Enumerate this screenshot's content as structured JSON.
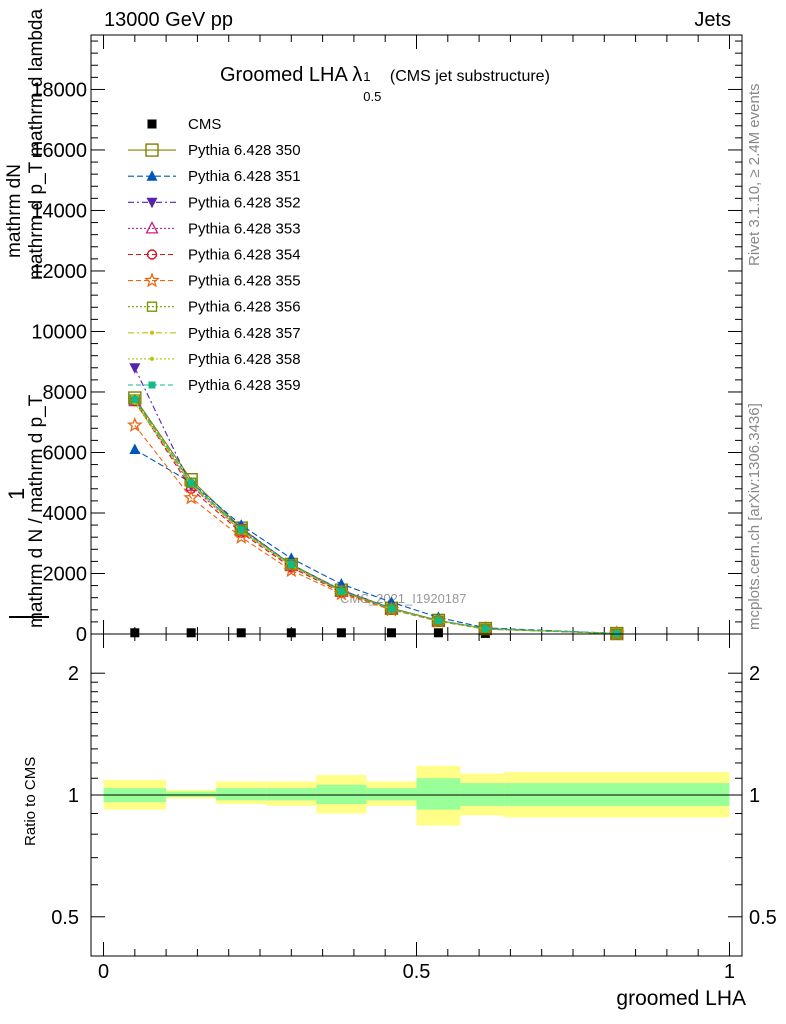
{
  "header": {
    "left": "13000 GeV pp",
    "right": "Jets"
  },
  "side_labels": {
    "rivet": "Rivet 3.1.10, ≥ 2.4M events",
    "mcplots": "mcplots.cern.ch [arXiv:1306.3436]"
  },
  "watermark": "CMS_2021_I1920187",
  "main_title": {
    "text": "Groomed LHA",
    "lambda": "λ",
    "sup": "1",
    "sub": "0.5",
    "note": "(CMS jet substructure)"
  },
  "y_axis_main": {
    "numerator": "mathrm dN",
    "denominator_top": "mathrm d p_T mathrm d lambda",
    "prefix": "1",
    "denominator_bottom": "mathrm d N / mathrm d p_T"
  },
  "y_axis_ratio_label": "Ratio to CMS",
  "x_axis_label": "groomed LHA",
  "colors": {
    "band_outer": "#ffff88",
    "band_inner": "#99ff99",
    "axis": "#000000"
  },
  "chart_data": [
    {
      "type": "line",
      "panel": "main",
      "xlim": [
        -0.02,
        1.02
      ],
      "ylim": [
        0,
        19800
      ],
      "y_ticks": [
        0,
        2000,
        4000,
        6000,
        8000,
        10000,
        12000,
        14000,
        16000,
        18000
      ],
      "y_tick_labels": [
        "0",
        "2000",
        "4000",
        "6000",
        "8000",
        "10000",
        "12000",
        "14000",
        "16000",
        "18000"
      ],
      "x": [
        0.05,
        0.14,
        0.22,
        0.3,
        0.38,
        0.46,
        0.535,
        0.61,
        0.82
      ],
      "series": [
        {
          "name": "CMS",
          "color": "#000000",
          "marker": "filled-square",
          "dash": "none",
          "values": [
            40,
            40,
            40,
            40,
            40,
            40,
            40,
            20,
            5
          ]
        },
        {
          "name": "Pythia 6.428 350",
          "color": "#808000",
          "marker": "open-square",
          "dash": "solid",
          "values": [
            7800,
            5100,
            3500,
            2300,
            1450,
            850,
            450,
            180,
            15
          ]
        },
        {
          "name": "Pythia 6.428 351",
          "color": "#0055bb",
          "marker": "filled-triangle-up",
          "dash": "6,3",
          "values": [
            6100,
            5000,
            3600,
            2500,
            1650,
            1050,
            550,
            200,
            20
          ]
        },
        {
          "name": "Pythia 6.428 352",
          "color": "#5522aa",
          "marker": "filled-triangle-down",
          "dash": "6,3,2,3",
          "values": [
            8800,
            4900,
            3500,
            2300,
            1450,
            850,
            450,
            170,
            15
          ]
        },
        {
          "name": "Pythia 6.428 353",
          "color": "#cc2288",
          "marker": "open-triangle-up",
          "dash": "2,2",
          "values": [
            7700,
            4900,
            3400,
            2250,
            1400,
            830,
            440,
            170,
            15
          ]
        },
        {
          "name": "Pythia 6.428 354",
          "color": "#dd1122",
          "marker": "open-circle",
          "dash": "5,3",
          "values": [
            7700,
            4800,
            3350,
            2200,
            1380,
            820,
            440,
            170,
            15
          ]
        },
        {
          "name": "Pythia 6.428 355",
          "color": "#ee6611",
          "marker": "open-star",
          "dash": "5,3",
          "values": [
            6900,
            4500,
            3200,
            2100,
            1330,
            800,
            420,
            160,
            15
          ]
        },
        {
          "name": "Pythia 6.428 356",
          "color": "#779900",
          "marker": "open-square-small",
          "dash": "2,2",
          "values": [
            7750,
            5000,
            3450,
            2300,
            1430,
            840,
            445,
            175,
            15
          ]
        },
        {
          "name": "Pythia 6.428 357",
          "color": "#ccbb00",
          "marker": "small-dot",
          "dash": "6,3,2,3",
          "values": [
            7700,
            4950,
            3400,
            2250,
            1410,
            830,
            440,
            172,
            15
          ]
        },
        {
          "name": "Pythia 6.428 358",
          "color": "#aacc00",
          "marker": "small-dot",
          "dash": "2,2",
          "values": [
            7650,
            4950,
            3400,
            2250,
            1400,
            830,
            440,
            170,
            15
          ]
        },
        {
          "name": "Pythia 6.428 359",
          "color": "#11bb88",
          "marker": "filled-square-small",
          "dash": "5,3",
          "values": [
            7750,
            5000,
            3450,
            2300,
            1420,
            840,
            445,
            175,
            15
          ]
        }
      ]
    },
    {
      "type": "area",
      "panel": "ratio",
      "xlim": [
        -0.02,
        1.02
      ],
      "y_scale": "log",
      "ylim": [
        0.4,
        2.5
      ],
      "y_ticks": [
        0.5,
        1,
        2
      ],
      "y_tick_labels": [
        "0.5",
        "1",
        "2"
      ],
      "x_ticks": [
        0,
        0.5,
        1
      ],
      "x_tick_labels": [
        "0",
        "0.5",
        "1"
      ],
      "reference": 1,
      "bins": [
        {
          "x0": 0.0,
          "x1": 0.1,
          "outer": [
            0.92,
            1.09
          ],
          "inner": [
            0.96,
            1.04
          ]
        },
        {
          "x0": 0.1,
          "x1": 0.18,
          "outer": [
            0.98,
            1.03
          ],
          "inner": [
            0.99,
            1.02
          ]
        },
        {
          "x0": 0.18,
          "x1": 0.26,
          "outer": [
            0.95,
            1.08
          ],
          "inner": [
            0.97,
            1.04
          ]
        },
        {
          "x0": 0.26,
          "x1": 0.34,
          "outer": [
            0.94,
            1.08
          ],
          "inner": [
            0.97,
            1.04
          ]
        },
        {
          "x0": 0.34,
          "x1": 0.42,
          "outer": [
            0.9,
            1.12
          ],
          "inner": [
            0.95,
            1.06
          ]
        },
        {
          "x0": 0.42,
          "x1": 0.5,
          "outer": [
            0.94,
            1.08
          ],
          "inner": [
            0.97,
            1.04
          ]
        },
        {
          "x0": 0.5,
          "x1": 0.57,
          "outer": [
            0.84,
            1.18
          ],
          "inner": [
            0.92,
            1.1
          ]
        },
        {
          "x0": 0.57,
          "x1": 0.64,
          "outer": [
            0.89,
            1.13
          ],
          "inner": [
            0.94,
            1.07
          ]
        },
        {
          "x0": 0.64,
          "x1": 1.0,
          "outer": [
            0.88,
            1.14
          ],
          "inner": [
            0.94,
            1.07
          ]
        }
      ]
    }
  ]
}
